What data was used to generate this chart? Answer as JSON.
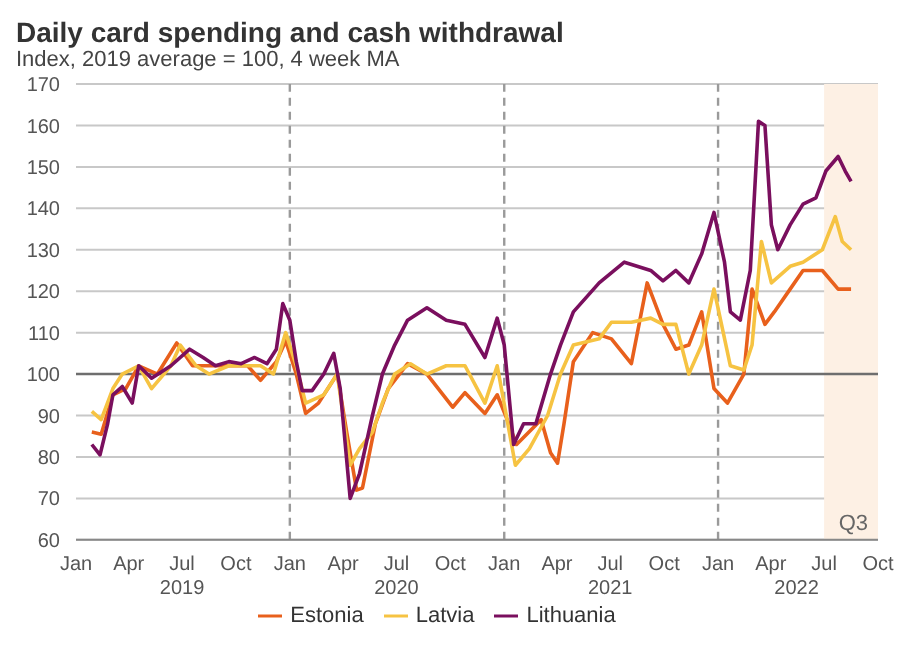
{
  "chart_data": {
    "type": "line",
    "title": "Daily card spending and cash withdrawal",
    "subtitle": "Index, 2019 average = 100, 4 week MA",
    "xlim": [
      "2019-01-01",
      "2022-10-01"
    ],
    "xticks": [
      {
        "value": "2019-01-01",
        "label": "Jan"
      },
      {
        "value": "2019-04-01",
        "label": "Apr"
      },
      {
        "value": "2019-07-01",
        "label": "Jul"
      },
      {
        "value": "2019-10-01",
        "label": "Oct"
      },
      {
        "value": "2020-01-01",
        "label": "Jan"
      },
      {
        "value": "2020-04-01",
        "label": "Apr"
      },
      {
        "value": "2020-07-01",
        "label": "Jul"
      },
      {
        "value": "2020-10-01",
        "label": "Oct"
      },
      {
        "value": "2021-01-01",
        "label": "Jan"
      },
      {
        "value": "2021-04-01",
        "label": "Apr"
      },
      {
        "value": "2021-07-01",
        "label": "Jul"
      },
      {
        "value": "2021-10-01",
        "label": "Oct"
      },
      {
        "value": "2022-01-01",
        "label": "Jan"
      },
      {
        "value": "2022-04-01",
        "label": "Apr"
      },
      {
        "value": "2022-07-01",
        "label": "Jul"
      },
      {
        "value": "2022-10-01",
        "label": "Oct"
      }
    ],
    "x2lim": [
      "2019-01-01",
      "2022-10-01"
    ],
    "x2ticks": [
      {
        "value": "2019-07-01",
        "label": "2019"
      },
      {
        "value": "2020-07-01",
        "label": "2020"
      },
      {
        "value": "2021-07-01",
        "label": "2021"
      },
      {
        "value": "2022-05-15",
        "label": "2022"
      }
    ],
    "ylim": [
      60,
      170
    ],
    "yticks": [
      60,
      70,
      80,
      90,
      100,
      110,
      120,
      130,
      140,
      150,
      160,
      170
    ],
    "grid": "y",
    "legend": "bottom",
    "line_style": "solid",
    "marker": "none",
    "ref_lines": [
      {
        "axis": "y",
        "value": 100,
        "color": "#6e6e6e",
        "line_style": "solid"
      },
      {
        "axis": "x",
        "value": "2020-01-01",
        "color": "#9a9a9a",
        "line_style": "dashed"
      },
      {
        "axis": "x",
        "value": "2021-01-01",
        "color": "#9a9a9a",
        "line_style": "dashed"
      },
      {
        "axis": "x",
        "value": "2022-01-01",
        "color": "#9a9a9a",
        "line_style": "dashed"
      }
    ],
    "bands": [
      {
        "axis": "x",
        "from": "2022-07-01",
        "to": "2022-10-01",
        "label": "Q3",
        "color": "#fdf0e4"
      }
    ],
    "series": [
      {
        "name": "Estonia",
        "color": "#e8601c",
        "x": [
          "2019-01-28",
          "2019-02-13",
          "2019-03-05",
          "2019-03-27",
          "2019-04-18",
          "2019-05-20",
          "2019-06-22",
          "2019-07-19",
          "2019-08-16",
          "2019-09-19",
          "2019-10-21",
          "2019-11-12",
          "2019-12-09",
          "2019-12-25",
          "2020-01-12",
          "2020-01-28",
          "2020-02-19",
          "2020-03-22",
          "2020-04-07",
          "2020-04-24",
          "2020-05-04",
          "2020-05-26",
          "2020-06-17",
          "2020-07-20",
          "2020-08-22",
          "2020-10-05",
          "2020-10-26",
          "2020-11-29",
          "2020-12-20",
          "2021-01-06",
          "2021-01-22",
          "2021-03-05",
          "2021-03-21",
          "2021-04-02",
          "2021-04-13",
          "2021-04-29",
          "2021-06-01",
          "2021-07-03",
          "2021-08-06",
          "2021-09-02",
          "2021-09-29",
          "2021-10-21",
          "2021-11-12",
          "2021-12-04",
          "2021-12-25",
          "2022-01-17",
          "2022-02-14",
          "2022-02-28",
          "2022-03-22",
          "2022-04-07",
          "2022-05-04",
          "2022-05-26",
          "2022-06-28",
          "2022-07-25",
          "2022-08-06",
          "2022-08-16"
        ],
        "values": [
          86,
          85.5,
          95,
          96.5,
          102,
          100,
          107.5,
          102,
          102,
          102,
          102,
          98.5,
          103,
          108,
          100,
          90.5,
          93,
          100,
          86,
          72,
          72.5,
          88,
          96.5,
          102.5,
          100,
          92,
          95.5,
          90.5,
          95,
          89,
          83,
          89,
          81,
          78.5,
          88,
          103,
          110,
          108.5,
          102.5,
          122,
          112,
          106,
          107,
          115,
          96.5,
          93,
          100,
          120.5,
          112,
          115,
          120.5,
          125,
          125,
          120.5,
          120.5,
          120.5
        ]
      },
      {
        "name": "Latvia",
        "color": "#f6c342",
        "x": [
          "2019-01-28",
          "2019-02-13",
          "2019-03-05",
          "2019-03-21",
          "2019-04-18",
          "2019-05-10",
          "2019-06-12",
          "2019-06-28",
          "2019-07-25",
          "2019-08-16",
          "2019-09-19",
          "2019-10-21",
          "2019-11-12",
          "2019-12-04",
          "2019-12-25",
          "2020-01-12",
          "2020-01-28",
          "2020-02-28",
          "2020-03-22",
          "2020-04-13",
          "2020-04-29",
          "2020-05-21",
          "2020-06-07",
          "2020-06-28",
          "2020-07-25",
          "2020-08-22",
          "2020-09-24",
          "2020-10-26",
          "2020-11-29",
          "2020-12-20",
          "2021-01-20",
          "2021-02-13",
          "2021-03-16",
          "2021-04-07",
          "2021-04-29",
          "2021-06-12",
          "2021-07-03",
          "2021-08-06",
          "2021-09-08",
          "2021-09-29",
          "2021-10-21",
          "2021-11-12",
          "2021-12-04",
          "2021-12-25",
          "2022-01-22",
          "2022-02-14",
          "2022-02-28",
          "2022-03-16",
          "2022-04-02",
          "2022-05-04",
          "2022-05-26",
          "2022-06-28",
          "2022-07-20",
          "2022-08-01",
          "2022-08-16"
        ],
        "values": [
          91,
          89,
          96.5,
          100,
          102,
          96.5,
          102,
          107,
          102,
          100,
          102,
          102,
          102,
          100,
          110,
          102,
          93,
          95,
          100,
          78,
          82,
          86,
          93,
          100,
          102.5,
          100,
          102,
          102,
          93,
          102,
          78,
          82,
          90,
          100,
          107,
          108.5,
          112.5,
          112.5,
          113.5,
          112,
          112,
          100,
          107,
          120.5,
          102,
          101,
          107,
          132,
          122,
          126,
          127,
          130,
          138,
          132,
          130
        ]
      },
      {
        "name": "Lithuania",
        "color": "#7a0f5e",
        "x": [
          "2019-01-28",
          "2019-02-11",
          "2019-02-24",
          "2019-03-05",
          "2019-03-21",
          "2019-04-07",
          "2019-04-18",
          "2019-05-10",
          "2019-06-12",
          "2019-07-14",
          "2019-08-06",
          "2019-08-27",
          "2019-09-19",
          "2019-10-10",
          "2019-11-02",
          "2019-11-23",
          "2019-12-09",
          "2019-12-20",
          "2020-01-01",
          "2020-01-12",
          "2020-01-22",
          "2020-02-08",
          "2020-02-28",
          "2020-03-16",
          "2020-03-27",
          "2020-04-13",
          "2020-04-29",
          "2020-05-21",
          "2020-06-07",
          "2020-06-28",
          "2020-07-20",
          "2020-08-22",
          "2020-09-24",
          "2020-10-26",
          "2020-11-29",
          "2020-12-20",
          "2021-01-01",
          "2021-01-17",
          "2021-02-03",
          "2021-02-24",
          "2021-03-21",
          "2021-04-07",
          "2021-04-29",
          "2021-06-12",
          "2021-07-25",
          "2021-09-08",
          "2021-09-29",
          "2021-10-21",
          "2021-11-12",
          "2021-12-04",
          "2021-12-25",
          "2022-01-12",
          "2022-01-22",
          "2022-02-08",
          "2022-02-25",
          "2022-03-11",
          "2022-03-22",
          "2022-04-02",
          "2022-04-13",
          "2022-05-04",
          "2022-05-26",
          "2022-06-17",
          "2022-07-04",
          "2022-07-25",
          "2022-08-06",
          "2022-08-16"
        ],
        "values": [
          83,
          80.5,
          88,
          95,
          97,
          93,
          102,
          99,
          102,
          106,
          104,
          102,
          103,
          102.5,
          104,
          102.5,
          106,
          117,
          113,
          103,
          96,
          96,
          100,
          105,
          96.5,
          70,
          76,
          90,
          100,
          107,
          113,
          116,
          113,
          112,
          104,
          113.5,
          107,
          83,
          88,
          88,
          100,
          107,
          115,
          122,
          127,
          125,
          122.5,
          125,
          122,
          129,
          139,
          127,
          115,
          113,
          125,
          161,
          160,
          136,
          130,
          136,
          141,
          142.5,
          149,
          152.5,
          149,
          146.5
        ]
      }
    ]
  }
}
